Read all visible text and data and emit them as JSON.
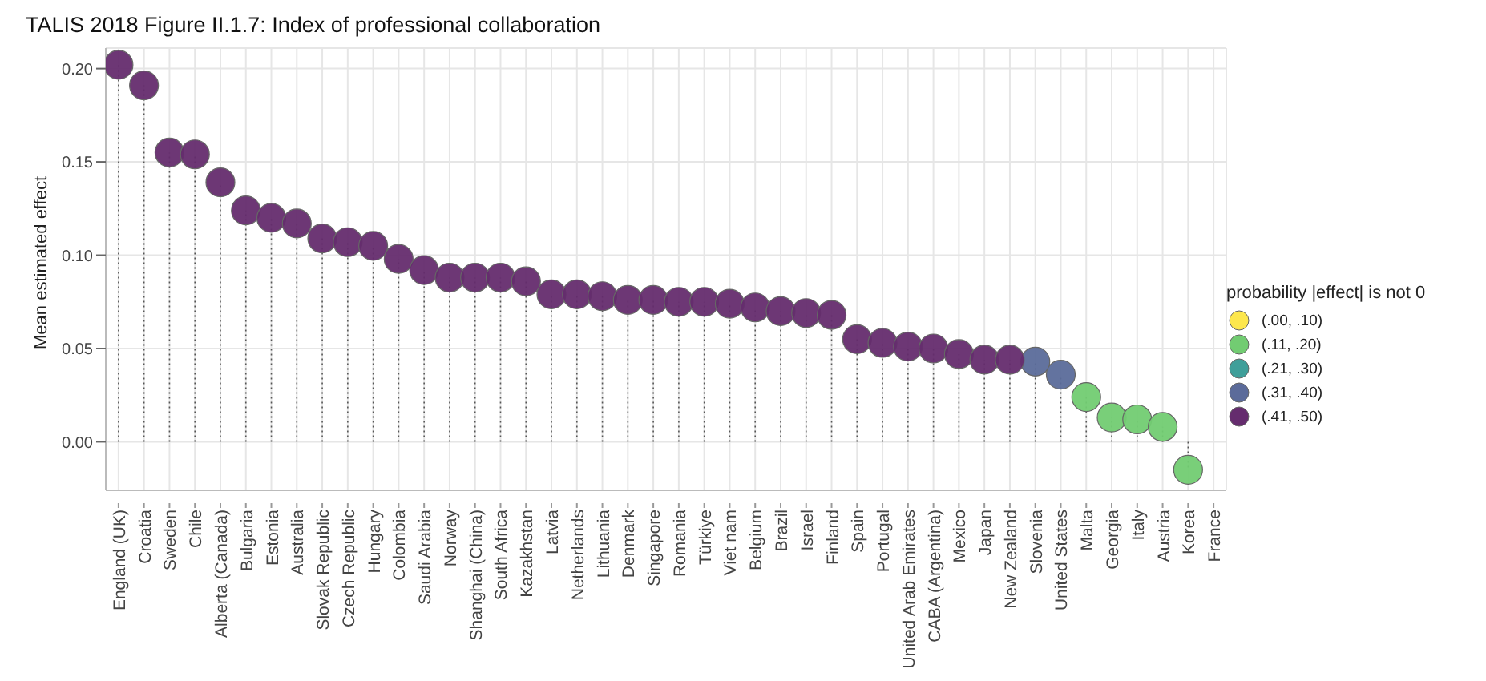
{
  "chart_data": {
    "type": "lollipop",
    "title": "TALIS 2018 Figure II.1.7: Index of professional collaboration",
    "ylabel": "Mean estimated effect",
    "legend_title": "probability |effect| is not 0",
    "categories": [
      "England (UK)",
      "Croatia",
      "Sweden",
      "Chile",
      "Alberta (Canada)",
      "Bulgaria",
      "Estonia",
      "Australia",
      "Slovak Republic",
      "Czech Republic",
      "Hungary",
      "Colombia",
      "Saudi Arabia",
      "Norway",
      "Shanghai (China)",
      "South Africa",
      "Kazakhstan",
      "Latvia",
      "Netherlands",
      "Lithuania",
      "Denmark",
      "Singapore",
      "Romania",
      "Türkiye",
      "Viet nam",
      "Belgium",
      "Brazil",
      "Israel",
      "Finland",
      "Spain",
      "Portugal",
      "United Arab Emirates",
      "CABA (Argentina)",
      "Mexico",
      "Japan",
      "New Zealand",
      "Slovenia",
      "United States",
      "Malta",
      "Georgia",
      "Italy",
      "Austria",
      "Korea",
      "France"
    ],
    "series": [
      {
        "name": "(.00, .10)",
        "color": "#fde74c",
        "values": [
          null,
          null,
          null,
          null,
          null,
          null,
          null,
          null,
          null,
          null,
          null,
          null,
          null,
          null,
          null,
          null,
          null,
          null,
          null,
          null,
          null,
          null,
          null,
          null,
          null,
          null,
          null,
          null,
          null,
          null,
          null,
          null,
          null,
          null,
          null,
          null,
          null,
          null,
          null,
          null,
          null,
          null,
          null,
          null
        ]
      },
      {
        "name": "(.11, .20)",
        "color": "#72cc72",
        "values": [
          null,
          null,
          null,
          null,
          null,
          null,
          null,
          null,
          null,
          null,
          null,
          null,
          null,
          null,
          null,
          null,
          null,
          null,
          null,
          null,
          null,
          null,
          null,
          null,
          null,
          null,
          null,
          null,
          null,
          null,
          null,
          null,
          null,
          null,
          null,
          null,
          null,
          null,
          0.024,
          0.013,
          0.012,
          0.008,
          -0.015,
          null
        ]
      },
      {
        "name": "(.21, .30)",
        "color": "#3f9f9a",
        "values": [
          null,
          null,
          null,
          null,
          null,
          null,
          null,
          null,
          null,
          null,
          null,
          null,
          null,
          null,
          null,
          null,
          null,
          null,
          null,
          null,
          null,
          null,
          null,
          null,
          null,
          null,
          null,
          null,
          null,
          null,
          null,
          null,
          null,
          null,
          null,
          null,
          null,
          null,
          null,
          null,
          null,
          null,
          null,
          null
        ]
      },
      {
        "name": "(.31, .40)",
        "color": "#5b6b9a",
        "values": [
          null,
          null,
          null,
          null,
          null,
          null,
          null,
          null,
          null,
          null,
          null,
          null,
          null,
          null,
          null,
          null,
          null,
          null,
          null,
          null,
          null,
          null,
          null,
          null,
          null,
          null,
          null,
          null,
          null,
          null,
          null,
          null,
          null,
          null,
          null,
          null,
          0.043,
          0.036,
          null,
          null,
          null,
          null,
          null,
          null
        ]
      },
      {
        "name": "(.41, .50)",
        "color": "#652c6e",
        "values": [
          0.202,
          0.191,
          0.155,
          0.154,
          0.139,
          0.124,
          0.12,
          0.117,
          0.109,
          0.107,
          0.105,
          0.098,
          0.092,
          0.088,
          0.088,
          0.088,
          0.086,
          0.079,
          0.079,
          0.078,
          0.076,
          0.076,
          0.075,
          0.075,
          0.074,
          0.072,
          0.07,
          0.069,
          0.068,
          0.055,
          0.053,
          0.051,
          0.05,
          0.047,
          0.044,
          0.044,
          null,
          null,
          null,
          null,
          null,
          null,
          null,
          null
        ]
      }
    ],
    "ylim": [
      -0.026,
      0.211
    ],
    "yticks": [
      {
        "value": 0,
        "label": "0.00"
      },
      {
        "value": 0.05,
        "label": "0.05"
      },
      {
        "value": 0.1,
        "label": "0.10"
      },
      {
        "value": 0.15,
        "label": "0.15"
      },
      {
        "value": 0.2,
        "label": "0.20"
      }
    ],
    "grid": true,
    "legend": "right",
    "marker": "circle",
    "line_style": "dotted"
  }
}
